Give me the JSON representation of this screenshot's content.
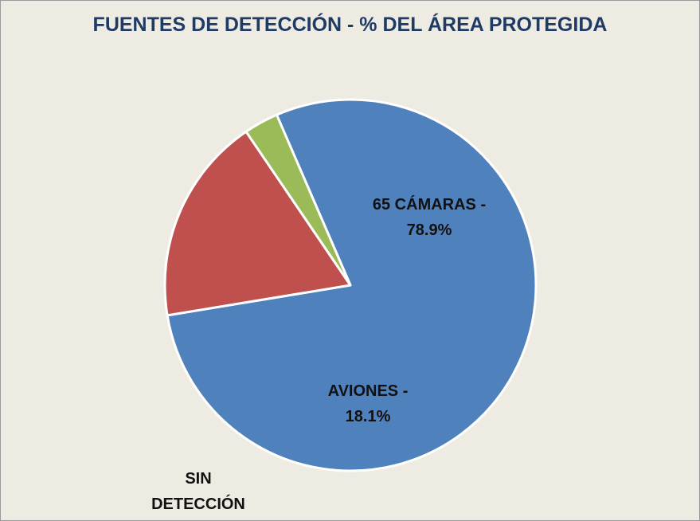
{
  "chart_data": {
    "type": "pie",
    "title": "FUENTES DE DETECCIÓN - % DEL ÁREA PROTEGIDA",
    "slices": [
      {
        "label_lines": [
          "65 CÁMARAS -",
          "78.9%"
        ],
        "value": 78.9,
        "color": "#4f81bd"
      },
      {
        "label_lines": [
          "AVIONES -",
          "18.1%"
        ],
        "value": 18.1,
        "color": "#c0504d"
      },
      {
        "label_lines": [
          "SIN",
          "DETECCIÓN"
        ],
        "value": 3.0,
        "color": "#9bbb59"
      }
    ],
    "legend": "none"
  }
}
